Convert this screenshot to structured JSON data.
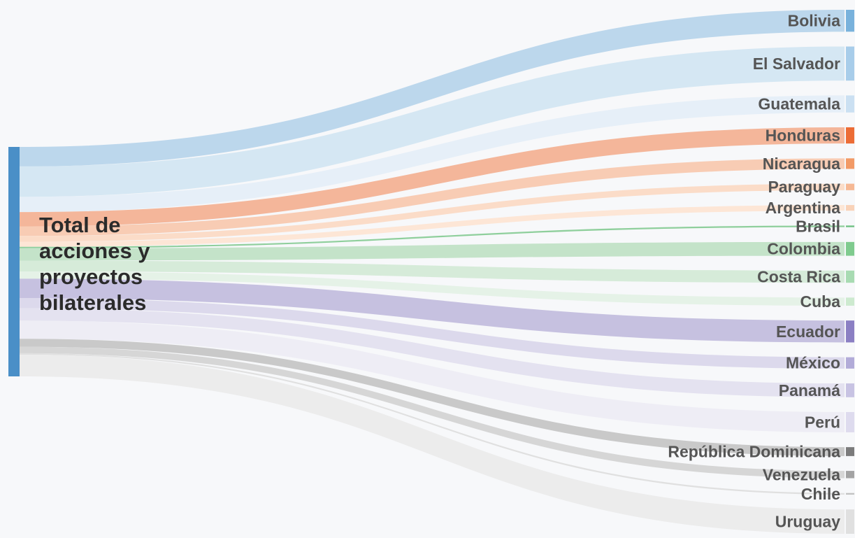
{
  "chart_data": {
    "type": "sankey",
    "source": "Total de\nacciones y\nproyectos\nbilaterales",
    "flows": [
      {
        "target": "Bolivia",
        "value": 27,
        "color": "#bcd7ec",
        "node_color": "#79b2dc"
      },
      {
        "target": "El Salvador",
        "value": 42,
        "color": "#d5e7f3",
        "node_color": "#a8cdea"
      },
      {
        "target": "Guatemala",
        "value": 21,
        "color": "#e6eff8",
        "node_color": "#cbe0f2"
      },
      {
        "target": "Honduras",
        "value": 20,
        "color": "#f4b69a",
        "node_color": "#ec6c35"
      },
      {
        "target": "Nicaragua",
        "value": 13,
        "color": "#f8ccb4",
        "node_color": "#f29a66"
      },
      {
        "target": "Paraguay",
        "value": 8,
        "color": "#fbdcc8",
        "node_color": "#f6b894"
      },
      {
        "target": "Argentina",
        "value": 7,
        "color": "#fde6d6",
        "node_color": "#f9d2b8"
      },
      {
        "target": "Brasil",
        "value": 2,
        "color": "#8fcf9c",
        "node_color": "#6cc080"
      },
      {
        "target": "Colombia",
        "value": 17,
        "color": "#c4e3c9",
        "node_color": "#7fcb8e"
      },
      {
        "target": "Costa Rica",
        "value": 15,
        "color": "#d6ebd9",
        "node_color": "#a8dbb2"
      },
      {
        "target": "Cuba",
        "value": 10,
        "color": "#e5f2e7",
        "node_color": "#cdeacf"
      },
      {
        "target": "Ecuador",
        "value": 27,
        "color": "#c6c1e0",
        "node_color": "#8b7fc3"
      },
      {
        "target": "México",
        "value": 14,
        "color": "#dcd9ec",
        "node_color": "#b2abd8"
      },
      {
        "target": "Panamá",
        "value": 17,
        "color": "#e4e2f0",
        "node_color": "#c8c3e3"
      },
      {
        "target": "Perú",
        "value": 25,
        "color": "#eeedf5",
        "node_color": "#dedbee"
      },
      {
        "target": "República Dominicana",
        "value": 11,
        "color": "#c9c9c9",
        "node_color": "#7b7b7b"
      },
      {
        "target": "Venezuela",
        "value": 9,
        "color": "#d6d6d6",
        "node_color": "#a3a3a3"
      },
      {
        "target": "Chile",
        "value": 2,
        "color": "#e0e0e0",
        "node_color": "#c2c2c2"
      },
      {
        "target": "Uruguay",
        "value": 30,
        "color": "#ececec",
        "node_color": "#e0e0e0"
      }
    ],
    "source_node_color": "#4a8fc7"
  }
}
